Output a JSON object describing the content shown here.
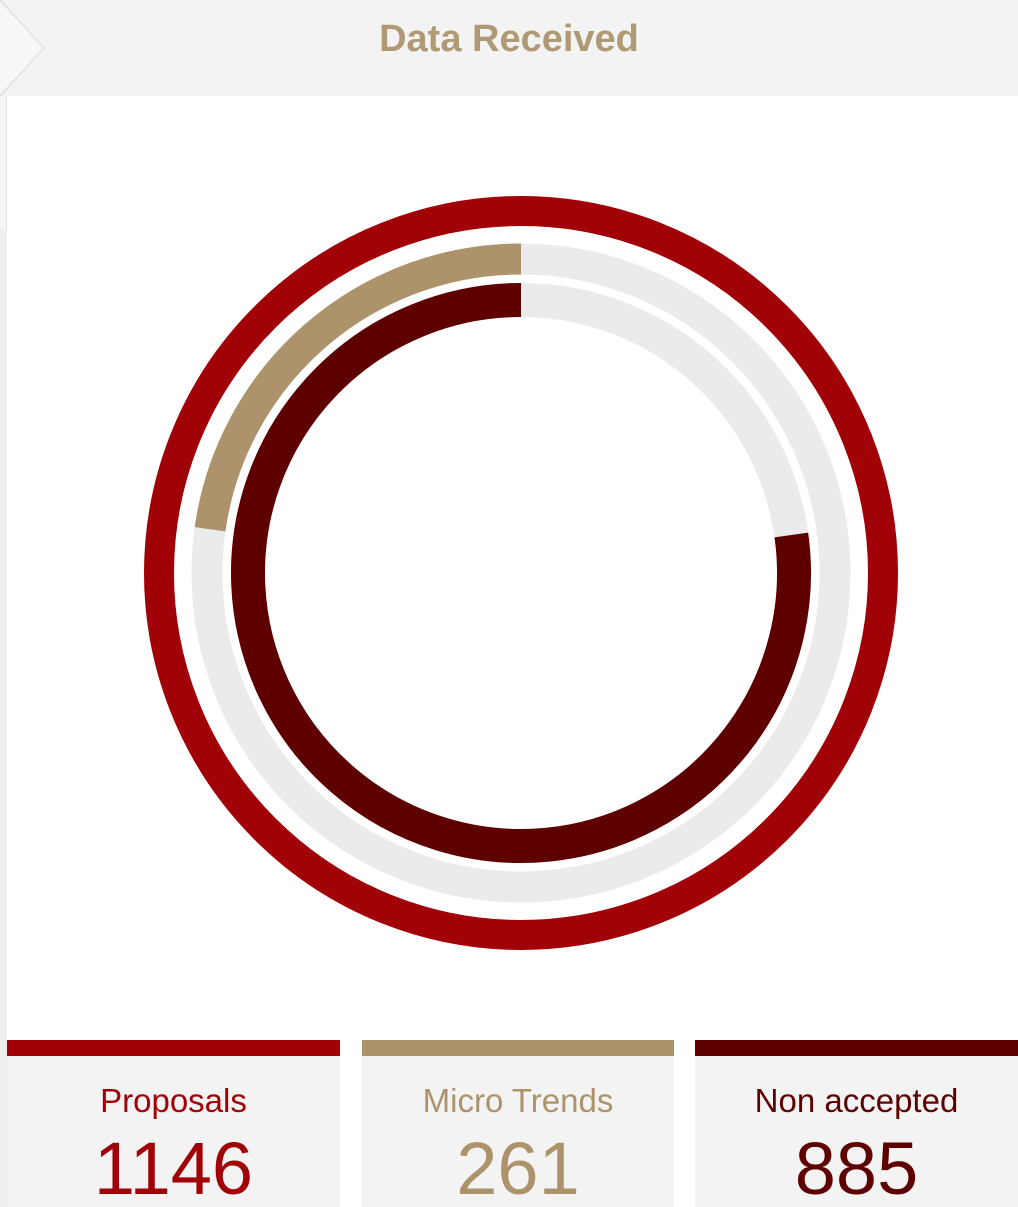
{
  "header": {
    "title": "Data Received"
  },
  "colors": {
    "proposals": "#a00208",
    "micro_trends": "#ad936b",
    "non_accepted": "#5e0000",
    "track": "#ebebeb",
    "title": "#b09a75"
  },
  "stats": [
    {
      "key": "proposals",
      "label": "Proposals",
      "value": "1146"
    },
    {
      "key": "micro_trends",
      "label": "Micro Trends",
      "value": "261"
    },
    {
      "key": "non_accepted",
      "label": "Non accepted",
      "value": "885"
    }
  ],
  "chart_data": {
    "type": "radial-progress",
    "title": "Data Received",
    "total": 1146,
    "series": [
      {
        "name": "Proposals",
        "value": 1146
      },
      {
        "name": "Micro Trends",
        "value": 261
      },
      {
        "name": "Non accepted",
        "value": 885
      }
    ]
  }
}
